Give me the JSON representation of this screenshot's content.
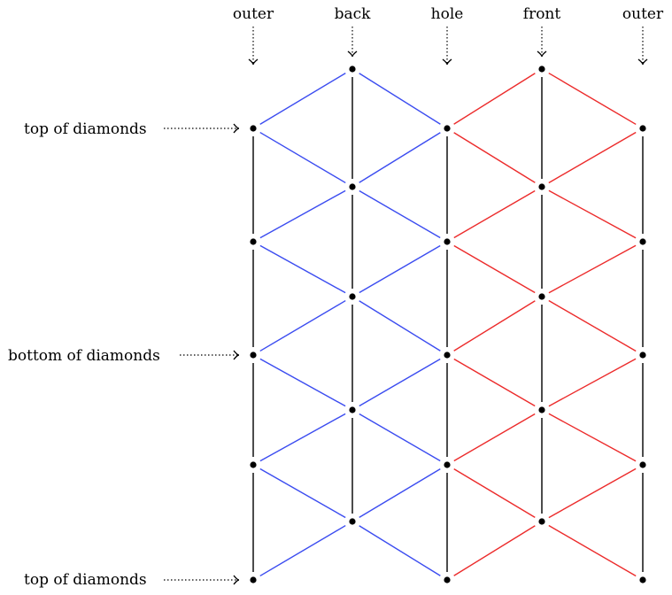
{
  "columns": [
    {
      "label": "outer"
    },
    {
      "label": "back"
    },
    {
      "label": "hole"
    },
    {
      "label": "front"
    },
    {
      "label": "outer"
    }
  ],
  "row_labels": [
    {
      "label": "top of diamonds"
    },
    {
      "label": "bottom of diamonds"
    },
    {
      "label": "top of diamonds"
    }
  ],
  "colors": {
    "left_section": "#3b4cf0",
    "right_section": "#ec2b2b",
    "vertical": "#000000",
    "arrow": "#000000"
  }
}
